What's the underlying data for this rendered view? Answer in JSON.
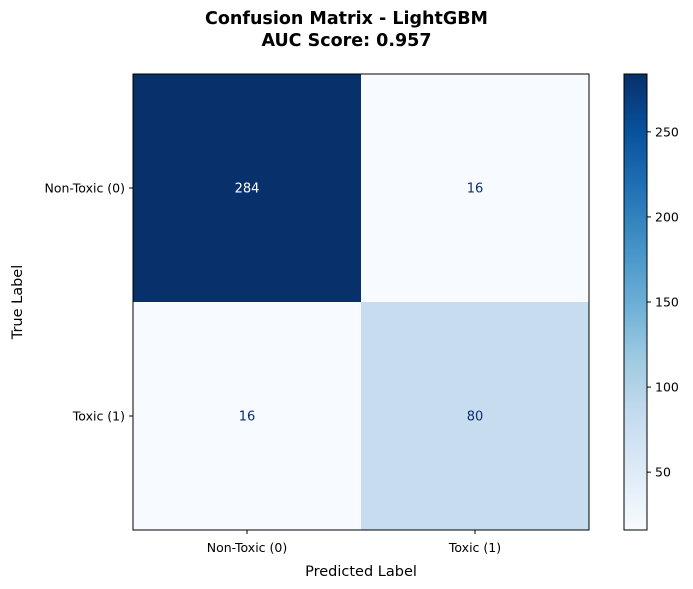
{
  "chart_data": {
    "type": "heatmap",
    "title_line1": "Confusion Matrix - LightGBM",
    "title_line2": "AUC Score: 0.957",
    "xlabel": "Predicted Label",
    "ylabel": "True Label",
    "x_categories": [
      "Non-Toxic (0)",
      "Toxic (1)"
    ],
    "y_categories": [
      "Non-Toxic (0)",
      "Toxic (1)"
    ],
    "values": [
      [
        284,
        16
      ],
      [
        16,
        80
      ]
    ],
    "colormap": "Blues",
    "colorbar": {
      "min": 16,
      "max": 284,
      "ticks": [
        50,
        100,
        150,
        200,
        250
      ]
    },
    "colors": {
      "low": "#f7fbff",
      "high": "#08306b",
      "text_dark": "#08306b",
      "text_light": "#ffffff"
    }
  }
}
